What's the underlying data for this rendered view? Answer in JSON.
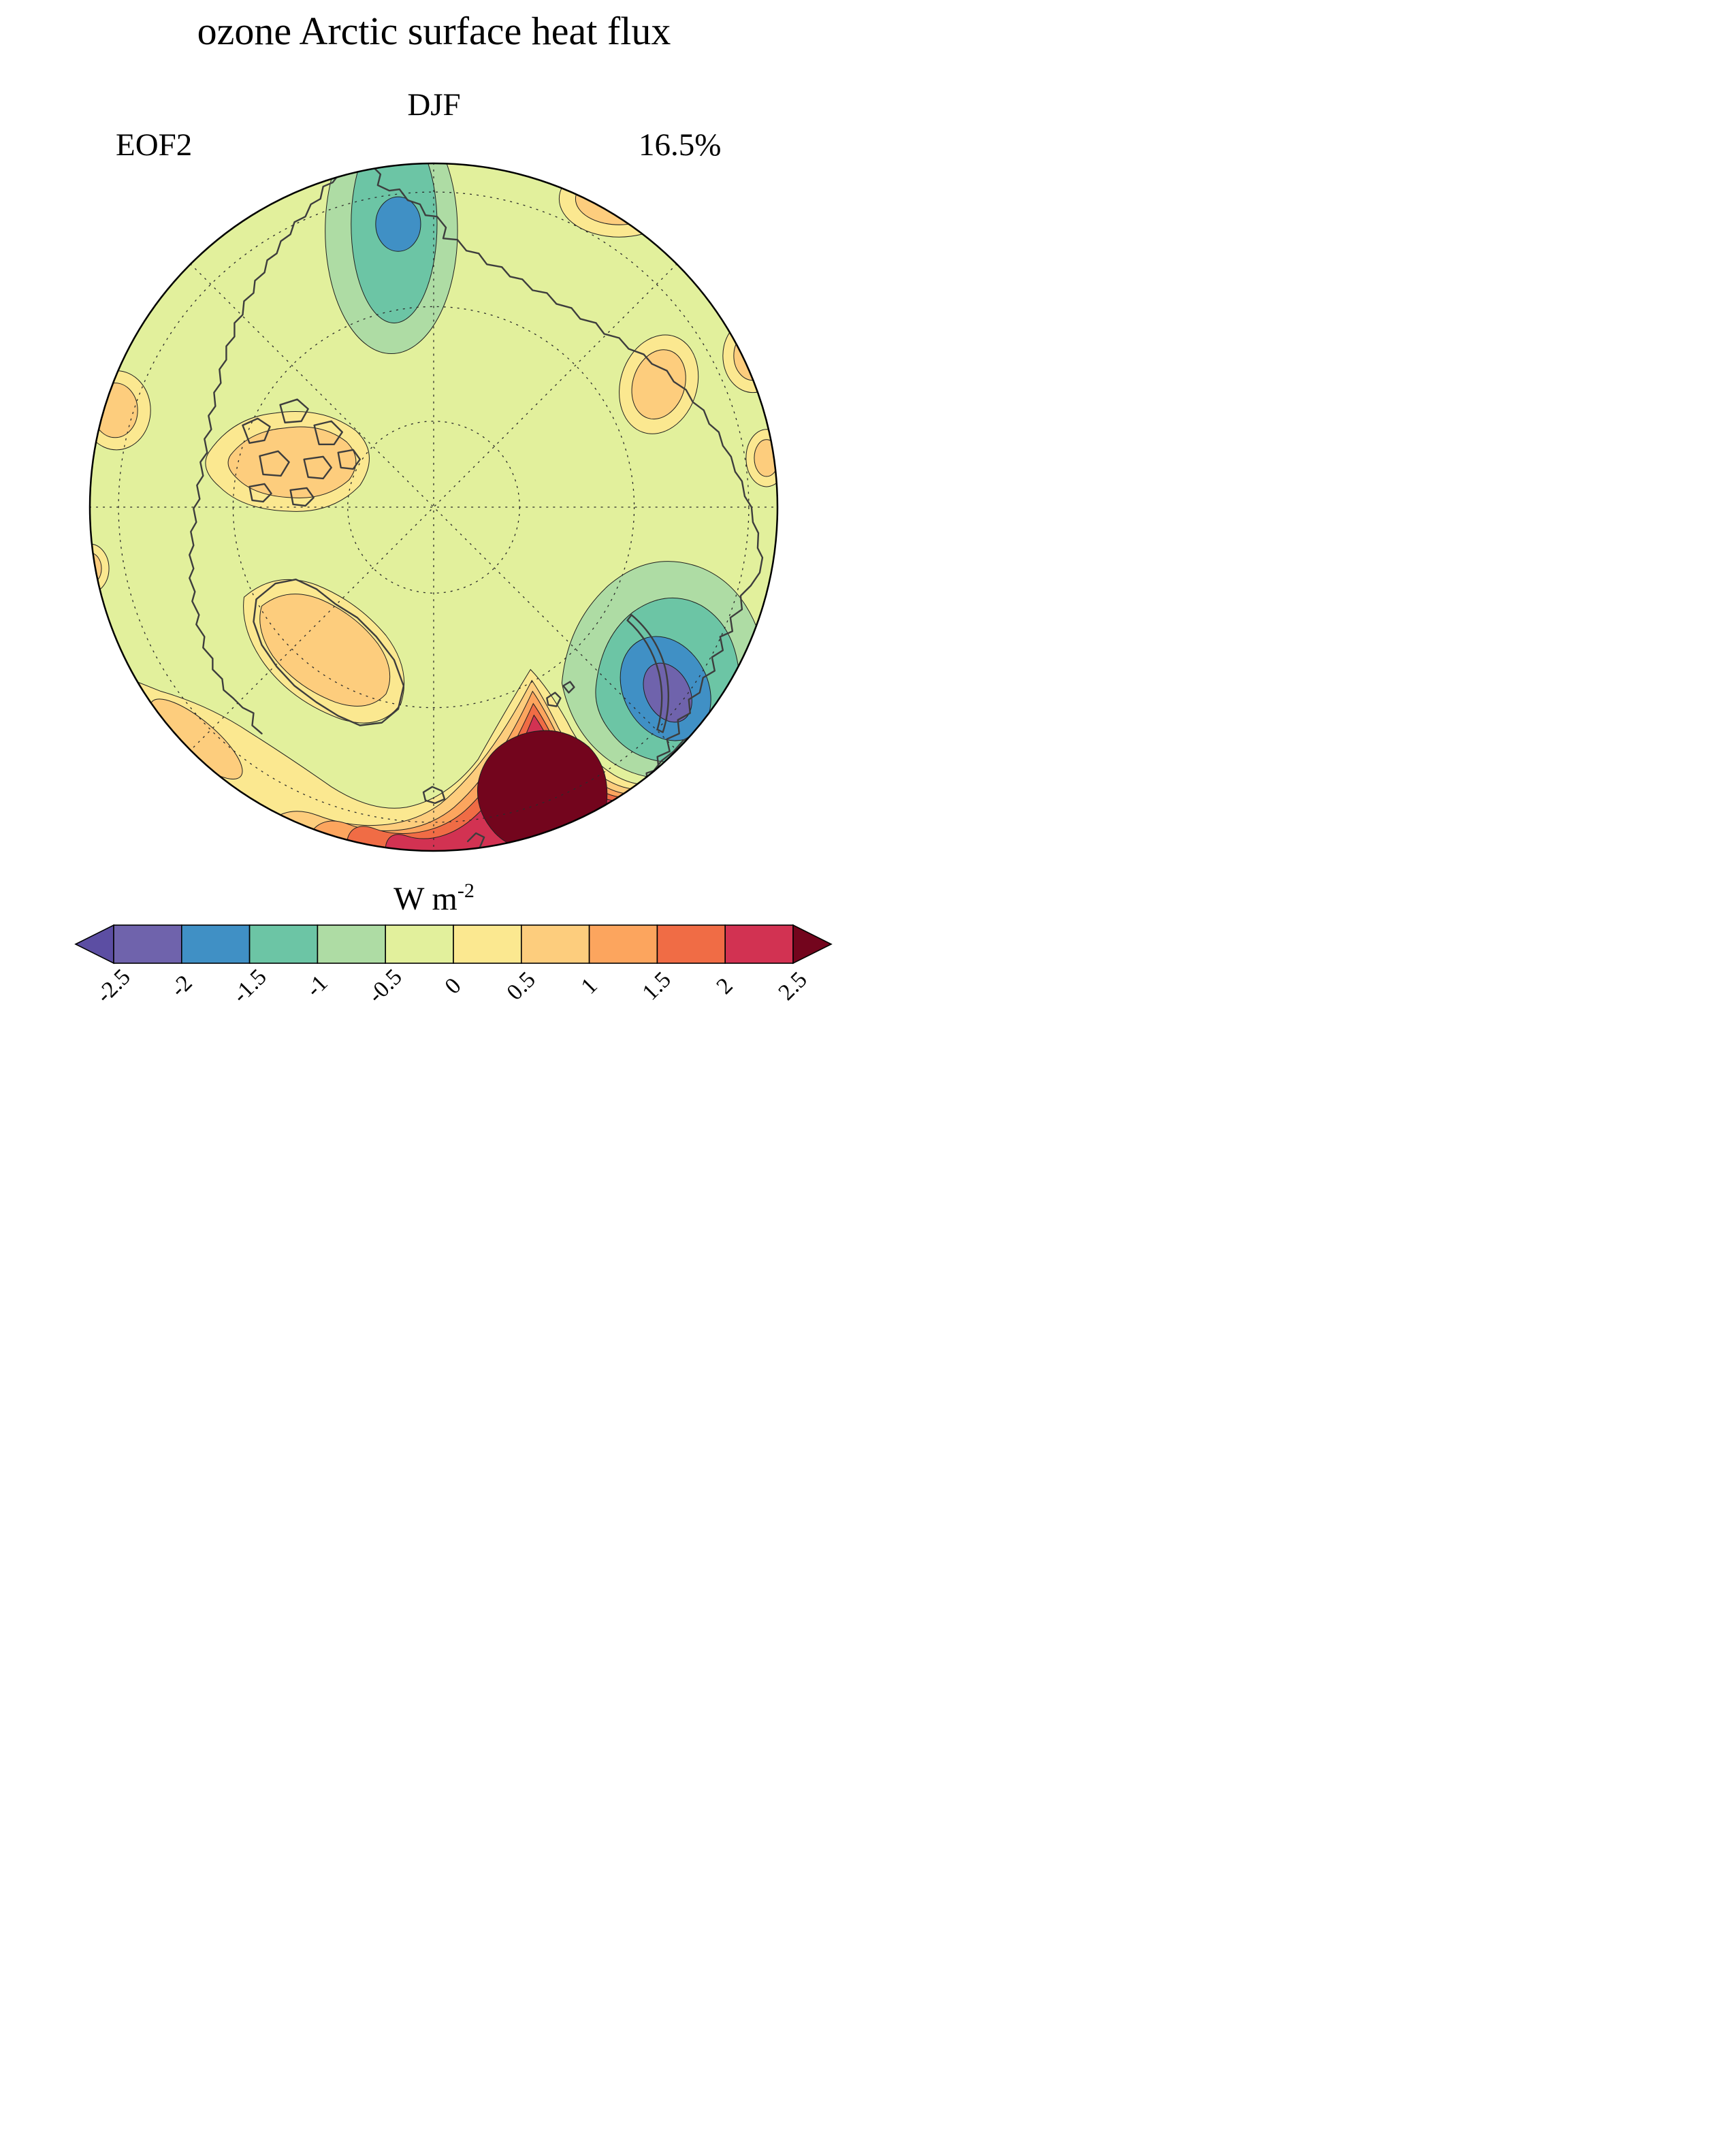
{
  "figure": {
    "title": "ozone Arctic surface heat flux",
    "season_label": "DJF",
    "mode_label": "EOF2",
    "variance_label": "16.5%"
  },
  "colorbar": {
    "unit_base": "W m",
    "unit_exponent": "-2",
    "tick_labels": [
      "-2.5",
      "-2",
      "-1.5",
      "-1",
      "-0.5",
      "0",
      "0.5",
      "1",
      "1.5",
      "2",
      "2.5"
    ],
    "colors": [
      "#5c4ea3",
      "#6f63ac",
      "#4090c5",
      "#6cc5a5",
      "#aedca4",
      "#e2f09c",
      "#fbe890",
      "#fdcd7d",
      "#fca55e",
      "#f06c45",
      "#d23252",
      "#73051d"
    ]
  },
  "palette": {
    "under": "#5c4ea3",
    "b1": "#6f63ac",
    "b2": "#4090c5",
    "b3": "#6cc5a5",
    "b4": "#aedca4",
    "b5": "#e2f09c",
    "b6": "#fbe890",
    "b7": "#fdcd7d",
    "b8": "#fca55e",
    "b9": "#f06c45",
    "b10": "#d23252",
    "over": "#73051d",
    "coast": "#3d3d3d",
    "grat": "#2b2b2b",
    "outline": "#000000"
  },
  "chart_data": {
    "type": "heatmap",
    "title": "ozone Arctic surface heat flux",
    "subtitle": "DJF",
    "panel_label": "EOF2",
    "variance_explained_percent": 16.5,
    "units": "W m^-2",
    "projection": "north polar stereographic",
    "grid": "dashed graticule, latitude circles and 45-degree meridians",
    "colorbar": {
      "orientation": "horizontal",
      "extend": "both",
      "ticks": [
        -2.5,
        -2,
        -1.5,
        -1,
        -0.5,
        0,
        0.5,
        1,
        1.5,
        2,
        2.5
      ],
      "colors": [
        "#5c4ea3",
        "#6f63ac",
        "#4090c5",
        "#6cc5a5",
        "#aedca4",
        "#e2f09c",
        "#fbe890",
        "#fdcd7d",
        "#fca55e",
        "#f06c45",
        "#d23252",
        "#73051d"
      ]
    },
    "features": [
      {
        "region": "East Siberian / Chukchi sector (top of map)",
        "sign": "negative",
        "peak_value_w_m2": -2,
        "description": "elongated lobe, light green to teal with small blue core"
      },
      {
        "region": "Barents-Kara Seas sector (lower right)",
        "sign": "negative",
        "peak_value_w_m2": -2.5,
        "description": "closed cell: green, teal, blue rings with purple core"
      },
      {
        "region": "North Atlantic / Nordic Seas (bottom)",
        "sign": "positive",
        "peak_value_w_m2": 2.5,
        "description": "broad maximum exceeding +2.5 W m^-2, concentric yellow-orange-red-maroon contours reaching map edge"
      },
      {
        "region": "Canadian Arctic Archipelago / Greenland / scattered rim patches",
        "sign": "positive",
        "peak_value_w_m2": 1,
        "description": "weak +0.5 to +1 patches"
      },
      {
        "region": "central Arctic background",
        "sign": "negative",
        "value_range_w_m2": [
          -0.5,
          0
        ],
        "description": "yellow-green background"
      }
    ]
  }
}
